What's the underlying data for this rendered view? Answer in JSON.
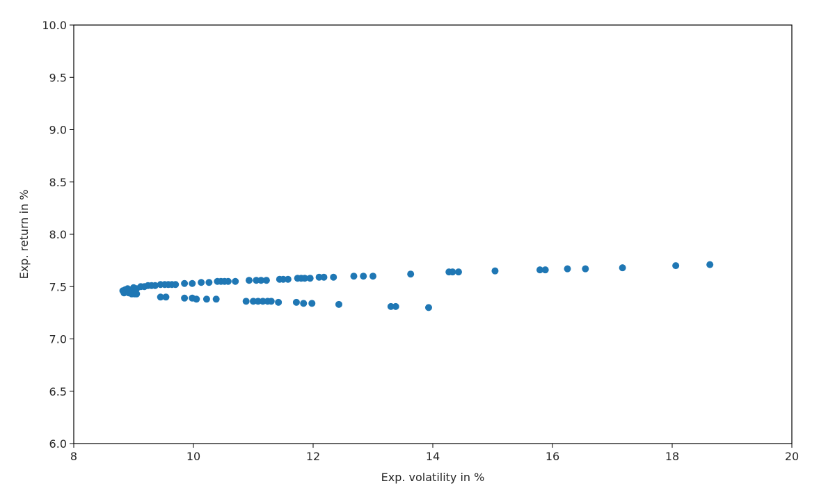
{
  "chart_data": {
    "type": "scatter",
    "title": "",
    "xlabel": "Exp. volatility in %",
    "ylabel": "Exp. return in %",
    "xlim": [
      8,
      20
    ],
    "ylim": [
      6.0,
      10.0
    ],
    "xticks": [
      8,
      10,
      12,
      14,
      16,
      18,
      20
    ],
    "xtick_labels": [
      "8",
      "10",
      "12",
      "14",
      "16",
      "18",
      "20"
    ],
    "yticks": [
      6.0,
      6.5,
      7.0,
      7.5,
      8.0,
      8.5,
      9.0,
      9.5,
      10.0
    ],
    "ytick_labels": [
      "6.0",
      "6.5",
      "7.0",
      "7.5",
      "8.0",
      "8.5",
      "9.0",
      "9.5",
      "10.0"
    ],
    "grid": false,
    "marker_color": "#1f77b4",
    "points": [
      {
        "x": 8.82,
        "y": 7.46
      },
      {
        "x": 8.84,
        "y": 7.44
      },
      {
        "x": 8.86,
        "y": 7.47
      },
      {
        "x": 8.88,
        "y": 7.45
      },
      {
        "x": 8.9,
        "y": 7.48
      },
      {
        "x": 8.92,
        "y": 7.44
      },
      {
        "x": 8.95,
        "y": 7.46
      },
      {
        "x": 8.97,
        "y": 7.43
      },
      {
        "x": 9.0,
        "y": 7.49
      },
      {
        "x": 9.02,
        "y": 7.43
      },
      {
        "x": 9.05,
        "y": 7.48
      },
      {
        "x": 9.05,
        "y": 7.43
      },
      {
        "x": 9.12,
        "y": 7.5
      },
      {
        "x": 9.18,
        "y": 7.5
      },
      {
        "x": 9.24,
        "y": 7.51
      },
      {
        "x": 9.3,
        "y": 7.51
      },
      {
        "x": 9.36,
        "y": 7.51
      },
      {
        "x": 9.45,
        "y": 7.52
      },
      {
        "x": 9.52,
        "y": 7.52
      },
      {
        "x": 9.58,
        "y": 7.52
      },
      {
        "x": 9.64,
        "y": 7.52
      },
      {
        "x": 9.7,
        "y": 7.52
      },
      {
        "x": 9.85,
        "y": 7.53
      },
      {
        "x": 9.98,
        "y": 7.53
      },
      {
        "x": 10.13,
        "y": 7.54
      },
      {
        "x": 10.26,
        "y": 7.54
      },
      {
        "x": 10.4,
        "y": 7.55
      },
      {
        "x": 10.46,
        "y": 7.55
      },
      {
        "x": 10.52,
        "y": 7.55
      },
      {
        "x": 10.58,
        "y": 7.55
      },
      {
        "x": 10.7,
        "y": 7.55
      },
      {
        "x": 10.93,
        "y": 7.56
      },
      {
        "x": 11.05,
        "y": 7.56
      },
      {
        "x": 11.13,
        "y": 7.56
      },
      {
        "x": 11.22,
        "y": 7.56
      },
      {
        "x": 11.44,
        "y": 7.57
      },
      {
        "x": 11.5,
        "y": 7.57
      },
      {
        "x": 11.58,
        "y": 7.57
      },
      {
        "x": 11.74,
        "y": 7.58
      },
      {
        "x": 11.8,
        "y": 7.58
      },
      {
        "x": 11.86,
        "y": 7.58
      },
      {
        "x": 11.95,
        "y": 7.58
      },
      {
        "x": 12.1,
        "y": 7.59
      },
      {
        "x": 12.18,
        "y": 7.59
      },
      {
        "x": 12.34,
        "y": 7.59
      },
      {
        "x": 12.68,
        "y": 7.6
      },
      {
        "x": 12.84,
        "y": 7.6
      },
      {
        "x": 13.0,
        "y": 7.6
      },
      {
        "x": 13.63,
        "y": 7.62
      },
      {
        "x": 14.27,
        "y": 7.64
      },
      {
        "x": 14.33,
        "y": 7.64
      },
      {
        "x": 14.43,
        "y": 7.64
      },
      {
        "x": 15.04,
        "y": 7.65
      },
      {
        "x": 15.79,
        "y": 7.66
      },
      {
        "x": 15.88,
        "y": 7.66
      },
      {
        "x": 16.25,
        "y": 7.67
      },
      {
        "x": 16.55,
        "y": 7.67
      },
      {
        "x": 17.17,
        "y": 7.68
      },
      {
        "x": 18.06,
        "y": 7.7
      },
      {
        "x": 18.63,
        "y": 7.71
      },
      {
        "x": 9.45,
        "y": 7.4
      },
      {
        "x": 9.54,
        "y": 7.4
      },
      {
        "x": 9.85,
        "y": 7.39
      },
      {
        "x": 9.98,
        "y": 7.39
      },
      {
        "x": 10.05,
        "y": 7.38
      },
      {
        "x": 10.22,
        "y": 7.38
      },
      {
        "x": 10.38,
        "y": 7.38
      },
      {
        "x": 10.88,
        "y": 7.36
      },
      {
        "x": 11.0,
        "y": 7.36
      },
      {
        "x": 11.08,
        "y": 7.36
      },
      {
        "x": 11.16,
        "y": 7.36
      },
      {
        "x": 11.24,
        "y": 7.36
      },
      {
        "x": 11.3,
        "y": 7.36
      },
      {
        "x": 11.42,
        "y": 7.35
      },
      {
        "x": 11.72,
        "y": 7.35
      },
      {
        "x": 11.84,
        "y": 7.34
      },
      {
        "x": 11.98,
        "y": 7.34
      },
      {
        "x": 12.43,
        "y": 7.33
      },
      {
        "x": 13.3,
        "y": 7.31
      },
      {
        "x": 13.38,
        "y": 7.31
      },
      {
        "x": 13.93,
        "y": 7.3
      }
    ]
  }
}
